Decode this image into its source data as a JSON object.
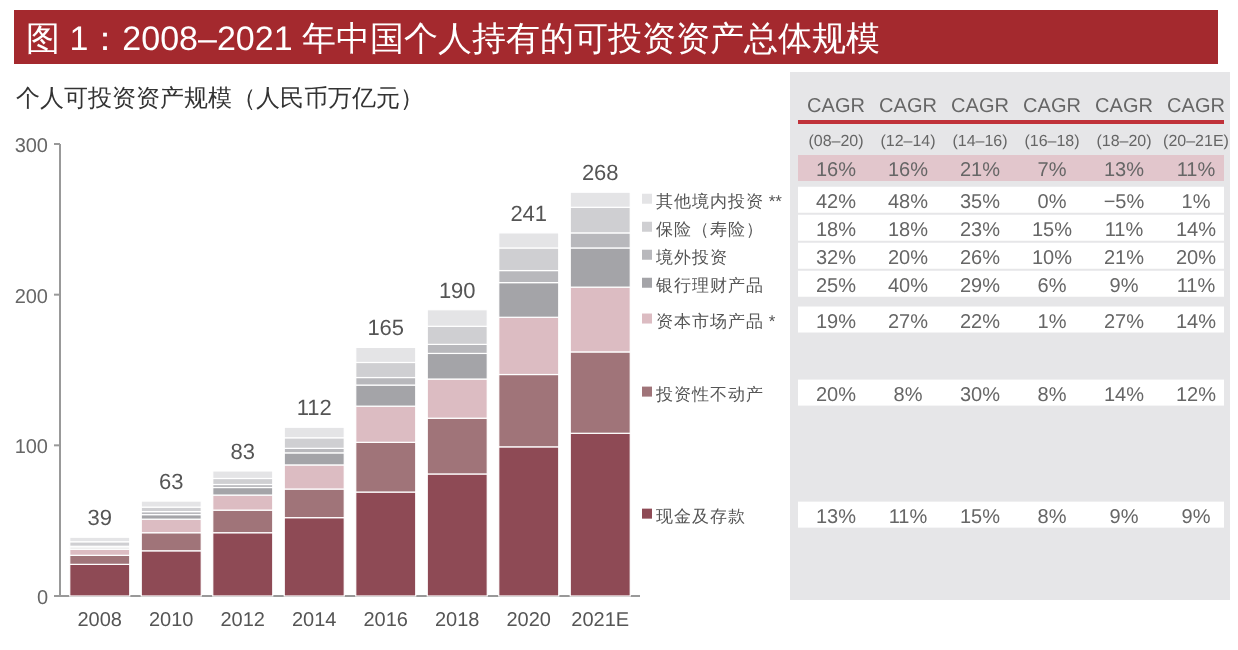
{
  "chart_data": {
    "type": "bar",
    "stacked": true,
    "title": "图 1：2008–2021 年中国个人持有的可投资资产总体规模",
    "ylabel": "个人可投资资产规模（人民币万亿元）",
    "categories": [
      "2008",
      "2010",
      "2012",
      "2014",
      "2016",
      "2018",
      "2020",
      "2021E"
    ],
    "series": [
      {
        "name": "现金及存款",
        "color": "#8e4a55",
        "values": [
          21,
          30,
          42,
          52,
          69,
          81,
          99,
          108
        ]
      },
      {
        "name": "投资性不动产",
        "color": "#a07479",
        "values": [
          6,
          12,
          15,
          19,
          33,
          37,
          48,
          54
        ]
      },
      {
        "name": "资本市场产品 *",
        "color": "#dcbcc2",
        "values": [
          4,
          9,
          10,
          16,
          24,
          26,
          38,
          43
        ]
      },
      {
        "name": "银行理财产品",
        "color": "#a4a4a8",
        "values": [
          1,
          3,
          5,
          8,
          14,
          17,
          23,
          26
        ]
      },
      {
        "name": "境外投资",
        "color": "#b8b8bc",
        "values": [
          1,
          2,
          2,
          3,
          5,
          6,
          8,
          10
        ]
      },
      {
        "name": "保险（寿险）",
        "color": "#cfcfd2",
        "values": [
          3,
          3,
          4,
          7,
          10,
          12,
          15,
          17
        ]
      },
      {
        "name": "其他境内投资 **",
        "color": "#e4e4e6",
        "values": [
          3,
          4,
          5,
          7,
          10,
          11,
          10,
          10
        ]
      }
    ],
    "totals": [
      "39",
      "63",
      "83",
      "112",
      "165",
      "190",
      "241",
      "268"
    ],
    "ylim": [
      0,
      300
    ],
    "yticks": [
      0,
      100,
      200,
      300
    ],
    "legend": "right",
    "annotations": [
      "CAGR",
      "CAGR",
      "CAGR",
      "CAGR",
      "CAGR",
      "CAGR",
      "(08–20)",
      "(12–14)",
      "(14–16)",
      "(16–18)",
      "(18–20)",
      "(20–21E)",
      "16%",
      "16%",
      "21%",
      "7%",
      "13%",
      "11%",
      "42%",
      "48%",
      "35%",
      "0%",
      "−5%",
      "1%",
      "18%",
      "18%",
      "23%",
      "15%",
      "11%",
      "14%",
      "32%",
      "20%",
      "26%",
      "10%",
      "21%",
      "20%",
      "25%",
      "40%",
      "29%",
      "6%",
      "9%",
      "11%",
      "19%",
      "27%",
      "22%",
      "1%",
      "27%",
      "14%",
      "20%",
      "8%",
      "30%",
      "8%",
      "14%",
      "12%",
      "13%",
      "11%",
      "15%",
      "8%",
      "9%",
      "9%"
    ]
  }
}
